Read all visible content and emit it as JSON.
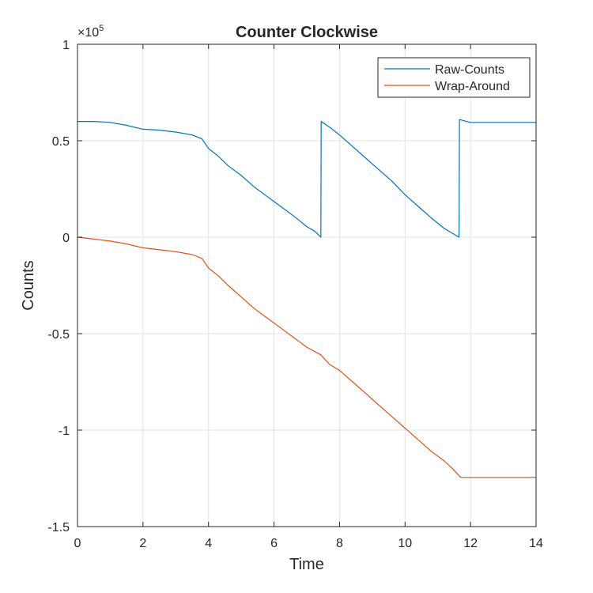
{
  "chart_data": {
    "type": "line",
    "title": "Counter Clockwise",
    "xlabel": "Time",
    "ylabel": "Counts",
    "xlim": [
      0,
      14
    ],
    "ylim": [
      -150000,
      100000
    ],
    "x_ticks": [
      0,
      2,
      4,
      6,
      8,
      10,
      12,
      14
    ],
    "x_tick_labels": [
      "0",
      "2",
      "4",
      "6",
      "8",
      "10",
      "12",
      "14"
    ],
    "y_ticks": [
      -150000,
      -100000,
      -50000,
      0,
      50000,
      100000
    ],
    "y_tick_labels": [
      "-1.5",
      "-1",
      "-0.5",
      "0",
      "0.5",
      "1"
    ],
    "y_exponent_label": {
      "base": "×10",
      "exponent": "5"
    },
    "grid": true,
    "legend": {
      "location": "top-right",
      "entries": [
        "Raw-Counts",
        "Wrap-Around"
      ]
    },
    "series": [
      {
        "name": "Raw-Counts",
        "color": "#0072BD",
        "x": [
          0,
          0.5,
          1,
          1.5,
          2,
          2.5,
          3,
          3.5,
          3.8,
          4.0,
          4.3,
          4.6,
          5.0,
          5.4,
          5.8,
          6.2,
          6.6,
          7.0,
          7.25,
          7.43,
          7.44,
          7.7,
          8.0,
          8.4,
          8.8,
          9.2,
          9.6,
          10.0,
          10.4,
          10.8,
          11.2,
          11.45,
          11.65,
          11.66,
          12.0,
          14.0
        ],
        "y": [
          60000,
          60000,
          59500,
          58000,
          56000,
          55500,
          54500,
          53000,
          51000,
          46000,
          42000,
          37000,
          32000,
          26000,
          21000,
          16000,
          11000,
          5500,
          3000,
          0,
          60000,
          57000,
          53000,
          47000,
          41000,
          35000,
          29000,
          22000,
          16000,
          10000,
          4500,
          2000,
          0,
          61000,
          59500,
          59500
        ]
      },
      {
        "name": "Wrap-Around",
        "color": "#D95319",
        "x": [
          0,
          0.5,
          1,
          1.5,
          2,
          2.5,
          3,
          3.5,
          3.8,
          4.0,
          4.3,
          4.6,
          5.0,
          5.4,
          5.8,
          6.2,
          6.6,
          7.0,
          7.43,
          7.7,
          8.0,
          8.4,
          8.8,
          9.2,
          9.6,
          10.0,
          10.4,
          10.8,
          11.2,
          11.45,
          11.7,
          12.0,
          14.0
        ],
        "y": [
          0,
          -1000,
          -2000,
          -3500,
          -5500,
          -6500,
          -7500,
          -9000,
          -11000,
          -16000,
          -20000,
          -25000,
          -31000,
          -37000,
          -42000,
          -47000,
          -52000,
          -57000,
          -61000,
          -66000,
          -69000,
          -75000,
          -81000,
          -87000,
          -93000,
          -99000,
          -105000,
          -111000,
          -116000,
          -120000,
          -124500,
          -124500,
          -124500
        ]
      }
    ]
  }
}
